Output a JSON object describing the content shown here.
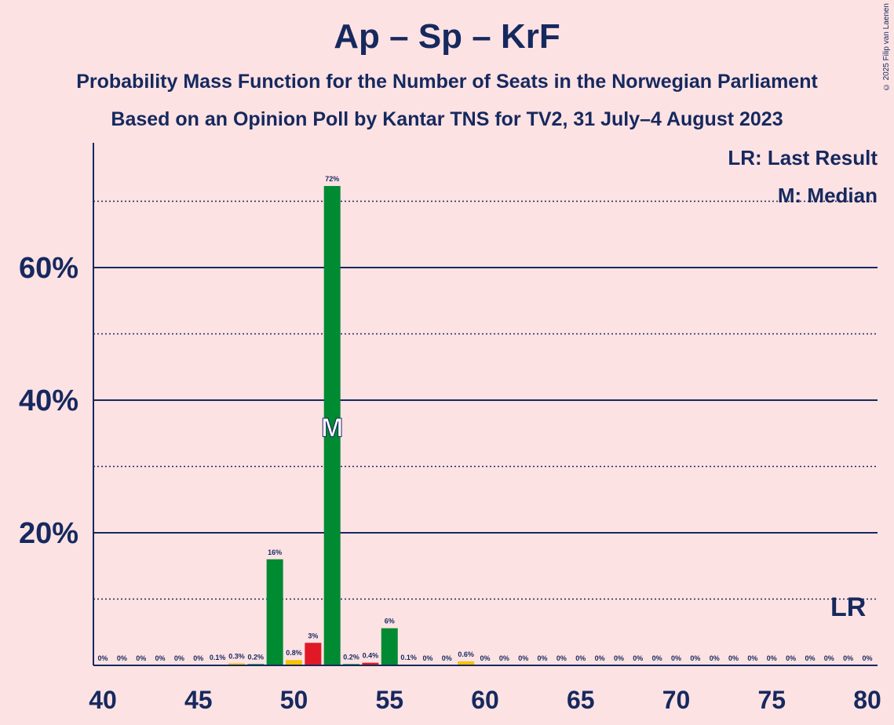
{
  "title": "Ap – Sp – KrF",
  "subtitle_1": "Probability Mass Function for the Number of Seats in the Norwegian Parliament",
  "subtitle_2": "Based on an Opinion Poll by Kantar TNS for TV2, 31 July–4 August 2023",
  "copyright": "© 2025 Filip van Laenen",
  "legend": {
    "last_result": "LR: Last Result",
    "median": "M: Median"
  },
  "markers": {
    "median_label": "M",
    "last_result_label": "LR"
  },
  "colors": {
    "background": "#FDE2E4",
    "text": "#16295E",
    "Ap": "#E11926",
    "Sp": "#008A32",
    "KrF": "#F7C200"
  },
  "chart_data": {
    "type": "bar",
    "x": [
      40,
      41,
      42,
      43,
      44,
      45,
      46,
      47,
      48,
      49,
      50,
      51,
      52,
      53,
      54,
      55,
      56,
      57,
      58,
      59,
      60,
      61,
      62,
      63,
      64,
      65,
      66,
      67,
      68,
      69,
      70,
      71,
      72,
      73,
      74,
      75,
      76,
      77,
      78,
      79,
      80
    ],
    "values": [
      0,
      0,
      0,
      0,
      0,
      0,
      0.1,
      0.3,
      0.2,
      16,
      0.8,
      3.4,
      72.3,
      0.2,
      0.4,
      5.6,
      0.1,
      0,
      0,
      0.6,
      0,
      0,
      0,
      0,
      0,
      0,
      0,
      0,
      0,
      0,
      0,
      0,
      0,
      0,
      0,
      0,
      0,
      0,
      0,
      0,
      0
    ],
    "labels": [
      "0%",
      "0%",
      "0%",
      "0%",
      "0%",
      "0%",
      "0.1%",
      "0.3%",
      "0.2%",
      "16%",
      "0.8%",
      "3%",
      "72%",
      "0.2%",
      "0.4%",
      "6%",
      "0.1%",
      "0%",
      "0%",
      "0.6%",
      "0%",
      "0%",
      "0%",
      "0%",
      "0%",
      "0%",
      "0%",
      "0%",
      "0%",
      "0%",
      "0%",
      "0%",
      "0%",
      "0%",
      "0%",
      "0%",
      "0%",
      "0%",
      "0%",
      "0%",
      "0%"
    ],
    "bar_colors": [
      "#008A32",
      "#008A32",
      "#008A32",
      "#008A32",
      "#008A32",
      "#008A32",
      "#008A32",
      "#F7C200",
      "#008A32",
      "#008A32",
      "#F7C200",
      "#E11926",
      "#008A32",
      "#008A32",
      "#E11926",
      "#008A32",
      "#008A32",
      "#008A32",
      "#008A32",
      "#F7C200",
      "#008A32",
      "#008A32",
      "#008A32",
      "#008A32",
      "#008A32",
      "#008A32",
      "#008A32",
      "#008A32",
      "#008A32",
      "#008A32",
      "#008A32",
      "#008A32",
      "#008A32",
      "#008A32",
      "#008A32",
      "#008A32",
      "#008A32",
      "#008A32",
      "#008A32",
      "#008A32",
      "#008A32"
    ],
    "x_ticks": [
      40,
      45,
      50,
      55,
      60,
      65,
      70,
      75,
      80
    ],
    "y_ticks_major": [
      20,
      40,
      60
    ],
    "y_tick_labels": [
      "20%",
      "40%",
      "60%"
    ],
    "y_ticks_minor": [
      10,
      30,
      50,
      70
    ],
    "ylim": [
      0,
      78.5
    ],
    "median": 52,
    "last_result": 79
  }
}
